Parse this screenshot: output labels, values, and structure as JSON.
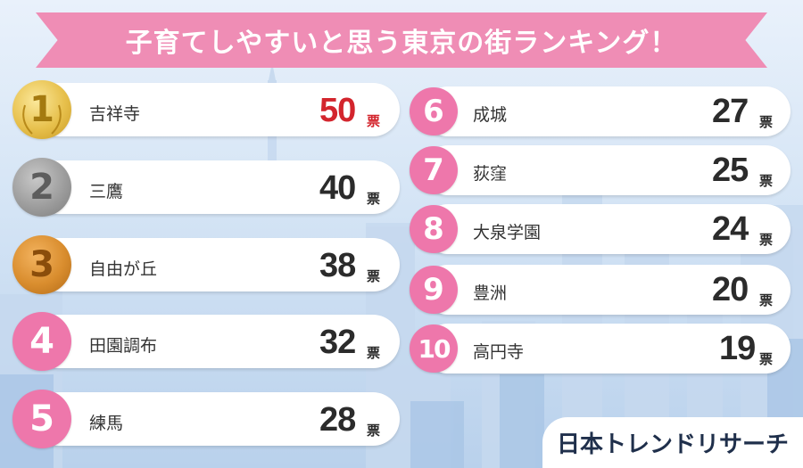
{
  "banner": {
    "title": "子育てしやすいと思う東京の街ランキング！"
  },
  "unit_label": "票",
  "colors": {
    "banner": "#ef8db5",
    "badge_pink": "#ee77ab",
    "top_vote": "#d3252d"
  },
  "left_column": [
    {
      "rank": "1",
      "name": "吉祥寺",
      "votes": "50"
    },
    {
      "rank": "2",
      "name": "三鷹",
      "votes": "40"
    },
    {
      "rank": "3",
      "name": "自由が丘",
      "votes": "38"
    },
    {
      "rank": "4",
      "name": "田園調布",
      "votes": "32"
    },
    {
      "rank": "5",
      "name": "練馬",
      "votes": "28"
    }
  ],
  "right_column": [
    {
      "rank": "6",
      "name": "成城",
      "votes": "27"
    },
    {
      "rank": "7",
      "name": "荻窪",
      "votes": "25"
    },
    {
      "rank": "8",
      "name": "大泉学園",
      "votes": "24"
    },
    {
      "rank": "9",
      "name": "豊洲",
      "votes": "20"
    },
    {
      "rank": "10",
      "name": "高円寺",
      "votes": "19"
    }
  ],
  "logo": {
    "text": "日本トレンドリサーチ"
  }
}
